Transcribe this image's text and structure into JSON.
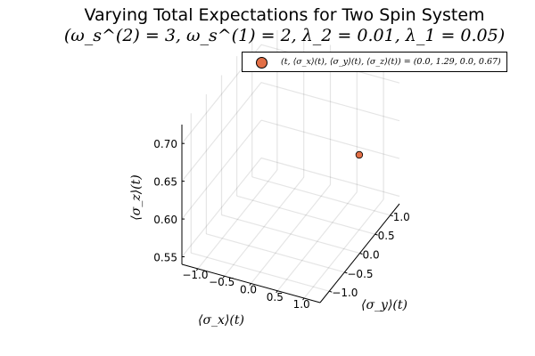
{
  "chart_data": {
    "type": "scatter",
    "projection": "3d",
    "title": "Varying Total Expectations for Two Spin System",
    "subtitle": "(ω_s^(2) = 3, ω_s^(1) = 2, λ_2 = 0.01, λ_1 = 0.05)",
    "xlabel": "⟨σ_x⟩(t)",
    "ylabel": "⟨σ_y⟩(t)",
    "zlabel": "⟨σ_z⟩(t)",
    "xticks": [
      "−1.0",
      "−0.5",
      "0.0",
      "0.5",
      "1.0"
    ],
    "yticks": [
      "−1.0",
      "−0.5",
      "0.0",
      "0.5",
      "1.0"
    ],
    "zticks": [
      "0.55",
      "0.60",
      "0.65",
      "0.70"
    ],
    "xlim": [
      -1.3,
      1.3
    ],
    "ylim": [
      -1.3,
      1.3
    ],
    "zlim": [
      0.54,
      0.725
    ],
    "grid": true,
    "legend_position": "top-right",
    "series": [
      {
        "name": "(t, ⟨σ_x⟩(t), ⟨σ_y⟩(t), ⟨σ_z⟩(t)) = (0.0, 1.29, 0.0, 0.67)",
        "color": "#e26f46",
        "points": [
          {
            "x": 1.29,
            "y": 0.0,
            "z": 0.67
          }
        ]
      }
    ]
  }
}
